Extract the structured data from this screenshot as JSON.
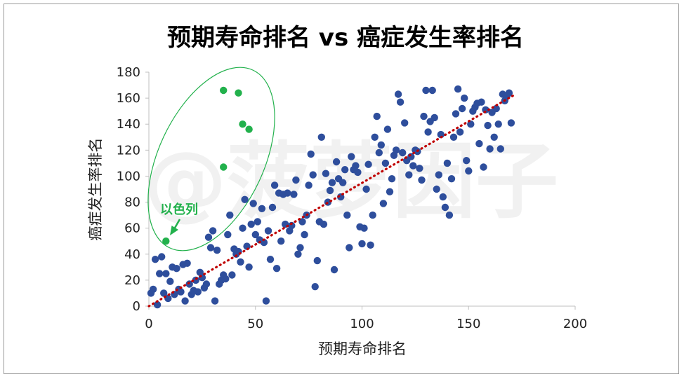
{
  "chart_data": {
    "type": "scatter",
    "title": "预期寿命排名 vs 癌症发生率排名",
    "xlabel": "预期寿命排名",
    "ylabel": "癌症发生率排名",
    "xlim": [
      0,
      200
    ],
    "ylim": [
      0,
      180
    ],
    "xticks": [
      0,
      50,
      100,
      150,
      200
    ],
    "yticks": [
      0,
      20,
      40,
      60,
      80,
      100,
      120,
      140,
      160,
      180
    ],
    "grid": false,
    "legend": "none",
    "watermark": "@菠萝因子",
    "colors": {
      "main": "#2e4e9c",
      "highlight": "#22b14c",
      "trend": "#c00000",
      "ellipse": "#22b14c"
    },
    "annotation": {
      "text": "以色列",
      "target": [
        8,
        50
      ]
    },
    "trendline": {
      "type": "linear",
      "from": [
        0,
        0
      ],
      "to": [
        172,
        163
      ]
    },
    "series": [
      {
        "role": "main",
        "points": [
          [
            1,
            10
          ],
          [
            2,
            13
          ],
          [
            3,
            36
          ],
          [
            4,
            1
          ],
          [
            5,
            25
          ],
          [
            6,
            38
          ],
          [
            7,
            10
          ],
          [
            8,
            25
          ],
          [
            9,
            6
          ],
          [
            10,
            19
          ],
          [
            11,
            30
          ],
          [
            12,
            9
          ],
          [
            13,
            29
          ],
          [
            14,
            13
          ],
          [
            15,
            11
          ],
          [
            16,
            32
          ],
          [
            17,
            4
          ],
          [
            18,
            33
          ],
          [
            19,
            17
          ],
          [
            20,
            9
          ],
          [
            21,
            12
          ],
          [
            22,
            20
          ],
          [
            23,
            11
          ],
          [
            24,
            26
          ],
          [
            25,
            22
          ],
          [
            26,
            14
          ],
          [
            27,
            17
          ],
          [
            28,
            53
          ],
          [
            29,
            45
          ],
          [
            30,
            58
          ],
          [
            31,
            4
          ],
          [
            32,
            43
          ],
          [
            33,
            17
          ],
          [
            34,
            20
          ],
          [
            35,
            24
          ],
          [
            36,
            21
          ],
          [
            37,
            55
          ],
          [
            38,
            70
          ],
          [
            39,
            24
          ],
          [
            40,
            44
          ],
          [
            41,
            40
          ],
          [
            42,
            42
          ],
          [
            43,
            34
          ],
          [
            44,
            60
          ],
          [
            45,
            82
          ],
          [
            46,
            46
          ],
          [
            47,
            30
          ],
          [
            48,
            63
          ],
          [
            49,
            79
          ],
          [
            50,
            55
          ],
          [
            51,
            65
          ],
          [
            52,
            51
          ],
          [
            53,
            75
          ],
          [
            54,
            49
          ],
          [
            55,
            4
          ],
          [
            56,
            58
          ],
          [
            57,
            36
          ],
          [
            58,
            76
          ],
          [
            59,
            93
          ],
          [
            60,
            29
          ],
          [
            61,
            87
          ],
          [
            62,
            50
          ],
          [
            63,
            86
          ],
          [
            64,
            63
          ],
          [
            65,
            87
          ],
          [
            66,
            58
          ],
          [
            67,
            62
          ],
          [
            68,
            86
          ],
          [
            69,
            97
          ],
          [
            70,
            40
          ],
          [
            71,
            45
          ],
          [
            72,
            65
          ],
          [
            73,
            55
          ],
          [
            74,
            70
          ],
          [
            75,
            93
          ],
          [
            76,
            117
          ],
          [
            77,
            101
          ],
          [
            78,
            15
          ],
          [
            79,
            35
          ],
          [
            80,
            65
          ],
          [
            81,
            130
          ],
          [
            82,
            63
          ],
          [
            83,
            102
          ],
          [
            84,
            80
          ],
          [
            85,
            89
          ],
          [
            86,
            95
          ],
          [
            87,
            28
          ],
          [
            88,
            111
          ],
          [
            89,
            98
          ],
          [
            90,
            84
          ],
          [
            91,
            95
          ],
          [
            92,
            105
          ],
          [
            93,
            70
          ],
          [
            94,
            45
          ],
          [
            95,
            115
          ],
          [
            96,
            105
          ],
          [
            97,
            108
          ],
          [
            98,
            103
          ],
          [
            99,
            61
          ],
          [
            100,
            48
          ],
          [
            101,
            60
          ],
          [
            102,
            90
          ],
          [
            103,
            109
          ],
          [
            104,
            47
          ],
          [
            105,
            70
          ],
          [
            106,
            130
          ],
          [
            107,
            146
          ],
          [
            108,
            118
          ],
          [
            109,
            124
          ],
          [
            110,
            79
          ],
          [
            111,
            110
          ],
          [
            112,
            136
          ],
          [
            113,
            88
          ],
          [
            114,
            98
          ],
          [
            115,
            116
          ],
          [
            116,
            120
          ],
          [
            117,
            163
          ],
          [
            118,
            157
          ],
          [
            119,
            118
          ],
          [
            120,
            141
          ],
          [
            121,
            112
          ],
          [
            122,
            101
          ],
          [
            123,
            115
          ],
          [
            124,
            108
          ],
          [
            125,
            120
          ],
          [
            126,
            119
          ],
          [
            127,
            106
          ],
          [
            128,
            97
          ],
          [
            129,
            146
          ],
          [
            130,
            166
          ],
          [
            131,
            134
          ],
          [
            132,
            142
          ],
          [
            133,
            166
          ],
          [
            134,
            145
          ],
          [
            135,
            90
          ],
          [
            136,
            101
          ],
          [
            137,
            132
          ],
          [
            138,
            84
          ],
          [
            139,
            76
          ],
          [
            140,
            110
          ],
          [
            141,
            70
          ],
          [
            142,
            98
          ],
          [
            143,
            130
          ],
          [
            144,
            148
          ],
          [
            145,
            167
          ],
          [
            146,
            134
          ],
          [
            147,
            152
          ],
          [
            148,
            160
          ],
          [
            149,
            112
          ],
          [
            150,
            104
          ],
          [
            151,
            140
          ],
          [
            152,
            150
          ],
          [
            153,
            153
          ],
          [
            154,
            156
          ],
          [
            155,
            125
          ],
          [
            156,
            157
          ],
          [
            157,
            107
          ],
          [
            158,
            151
          ],
          [
            159,
            139
          ],
          [
            160,
            121
          ],
          [
            161,
            149
          ],
          [
            162,
            130
          ],
          [
            163,
            152
          ],
          [
            164,
            140
          ],
          [
            165,
            121
          ],
          [
            166,
            163
          ],
          [
            167,
            158
          ],
          [
            168,
            162
          ],
          [
            169,
            164
          ],
          [
            170,
            141
          ]
        ]
      },
      {
        "role": "highlight",
        "points": [
          [
            8,
            50
          ],
          [
            35,
            107
          ],
          [
            35,
            166
          ],
          [
            42,
            164
          ],
          [
            44,
            140
          ],
          [
            47,
            136
          ]
        ]
      }
    ]
  }
}
